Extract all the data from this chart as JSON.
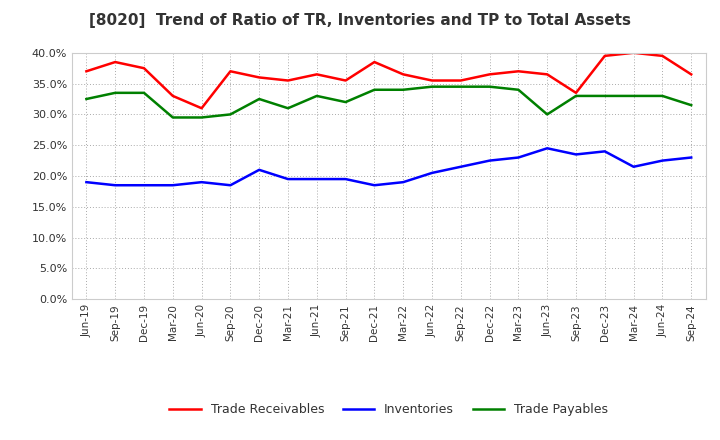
{
  "title": "[8020]  Trend of Ratio of TR, Inventories and TP to Total Assets",
  "x_labels": [
    "Jun-19",
    "Sep-19",
    "Dec-19",
    "Mar-20",
    "Jun-20",
    "Sep-20",
    "Dec-20",
    "Mar-21",
    "Jun-21",
    "Sep-21",
    "Dec-21",
    "Mar-22",
    "Jun-22",
    "Sep-22",
    "Dec-22",
    "Mar-23",
    "Jun-23",
    "Sep-23",
    "Dec-23",
    "Mar-24",
    "Jun-24",
    "Sep-24"
  ],
  "trade_receivables": [
    37.0,
    38.5,
    37.5,
    33.0,
    31.0,
    37.0,
    36.0,
    35.5,
    36.5,
    35.5,
    38.5,
    36.5,
    35.5,
    35.5,
    36.5,
    37.0,
    36.5,
    33.5,
    39.5,
    40.0,
    39.5,
    36.5
  ],
  "inventories": [
    19.0,
    18.5,
    18.5,
    18.5,
    19.0,
    18.5,
    21.0,
    19.5,
    19.5,
    19.5,
    18.5,
    19.0,
    20.5,
    21.5,
    22.5,
    23.0,
    24.5,
    23.5,
    24.0,
    21.5,
    22.5,
    23.0
  ],
  "trade_payables": [
    32.5,
    33.5,
    33.5,
    29.5,
    29.5,
    30.0,
    32.5,
    31.0,
    33.0,
    32.0,
    34.0,
    34.0,
    34.5,
    34.5,
    34.5,
    34.0,
    30.0,
    33.0,
    33.0,
    33.0,
    33.0,
    31.5
  ],
  "tr_color": "#ff0000",
  "inv_color": "#0000ff",
  "tp_color": "#008000",
  "ylim": [
    0,
    40
  ],
  "yticks": [
    0,
    5,
    10,
    15,
    20,
    25,
    30,
    35,
    40
  ],
  "bg_color": "#ffffff",
  "grid_color": "#aaaaaa",
  "legend_labels": [
    "Trade Receivables",
    "Inventories",
    "Trade Payables"
  ]
}
